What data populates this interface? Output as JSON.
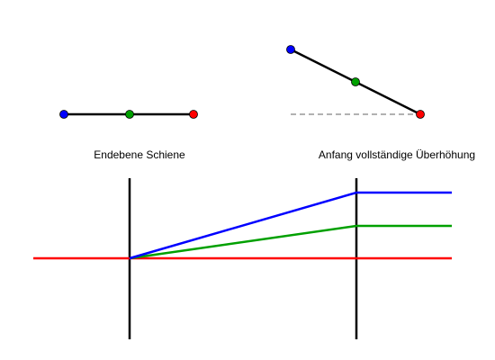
{
  "captions": {
    "left": "Endebene Schiene",
    "right": "Anfang vollständige Überhöhung"
  }
}
